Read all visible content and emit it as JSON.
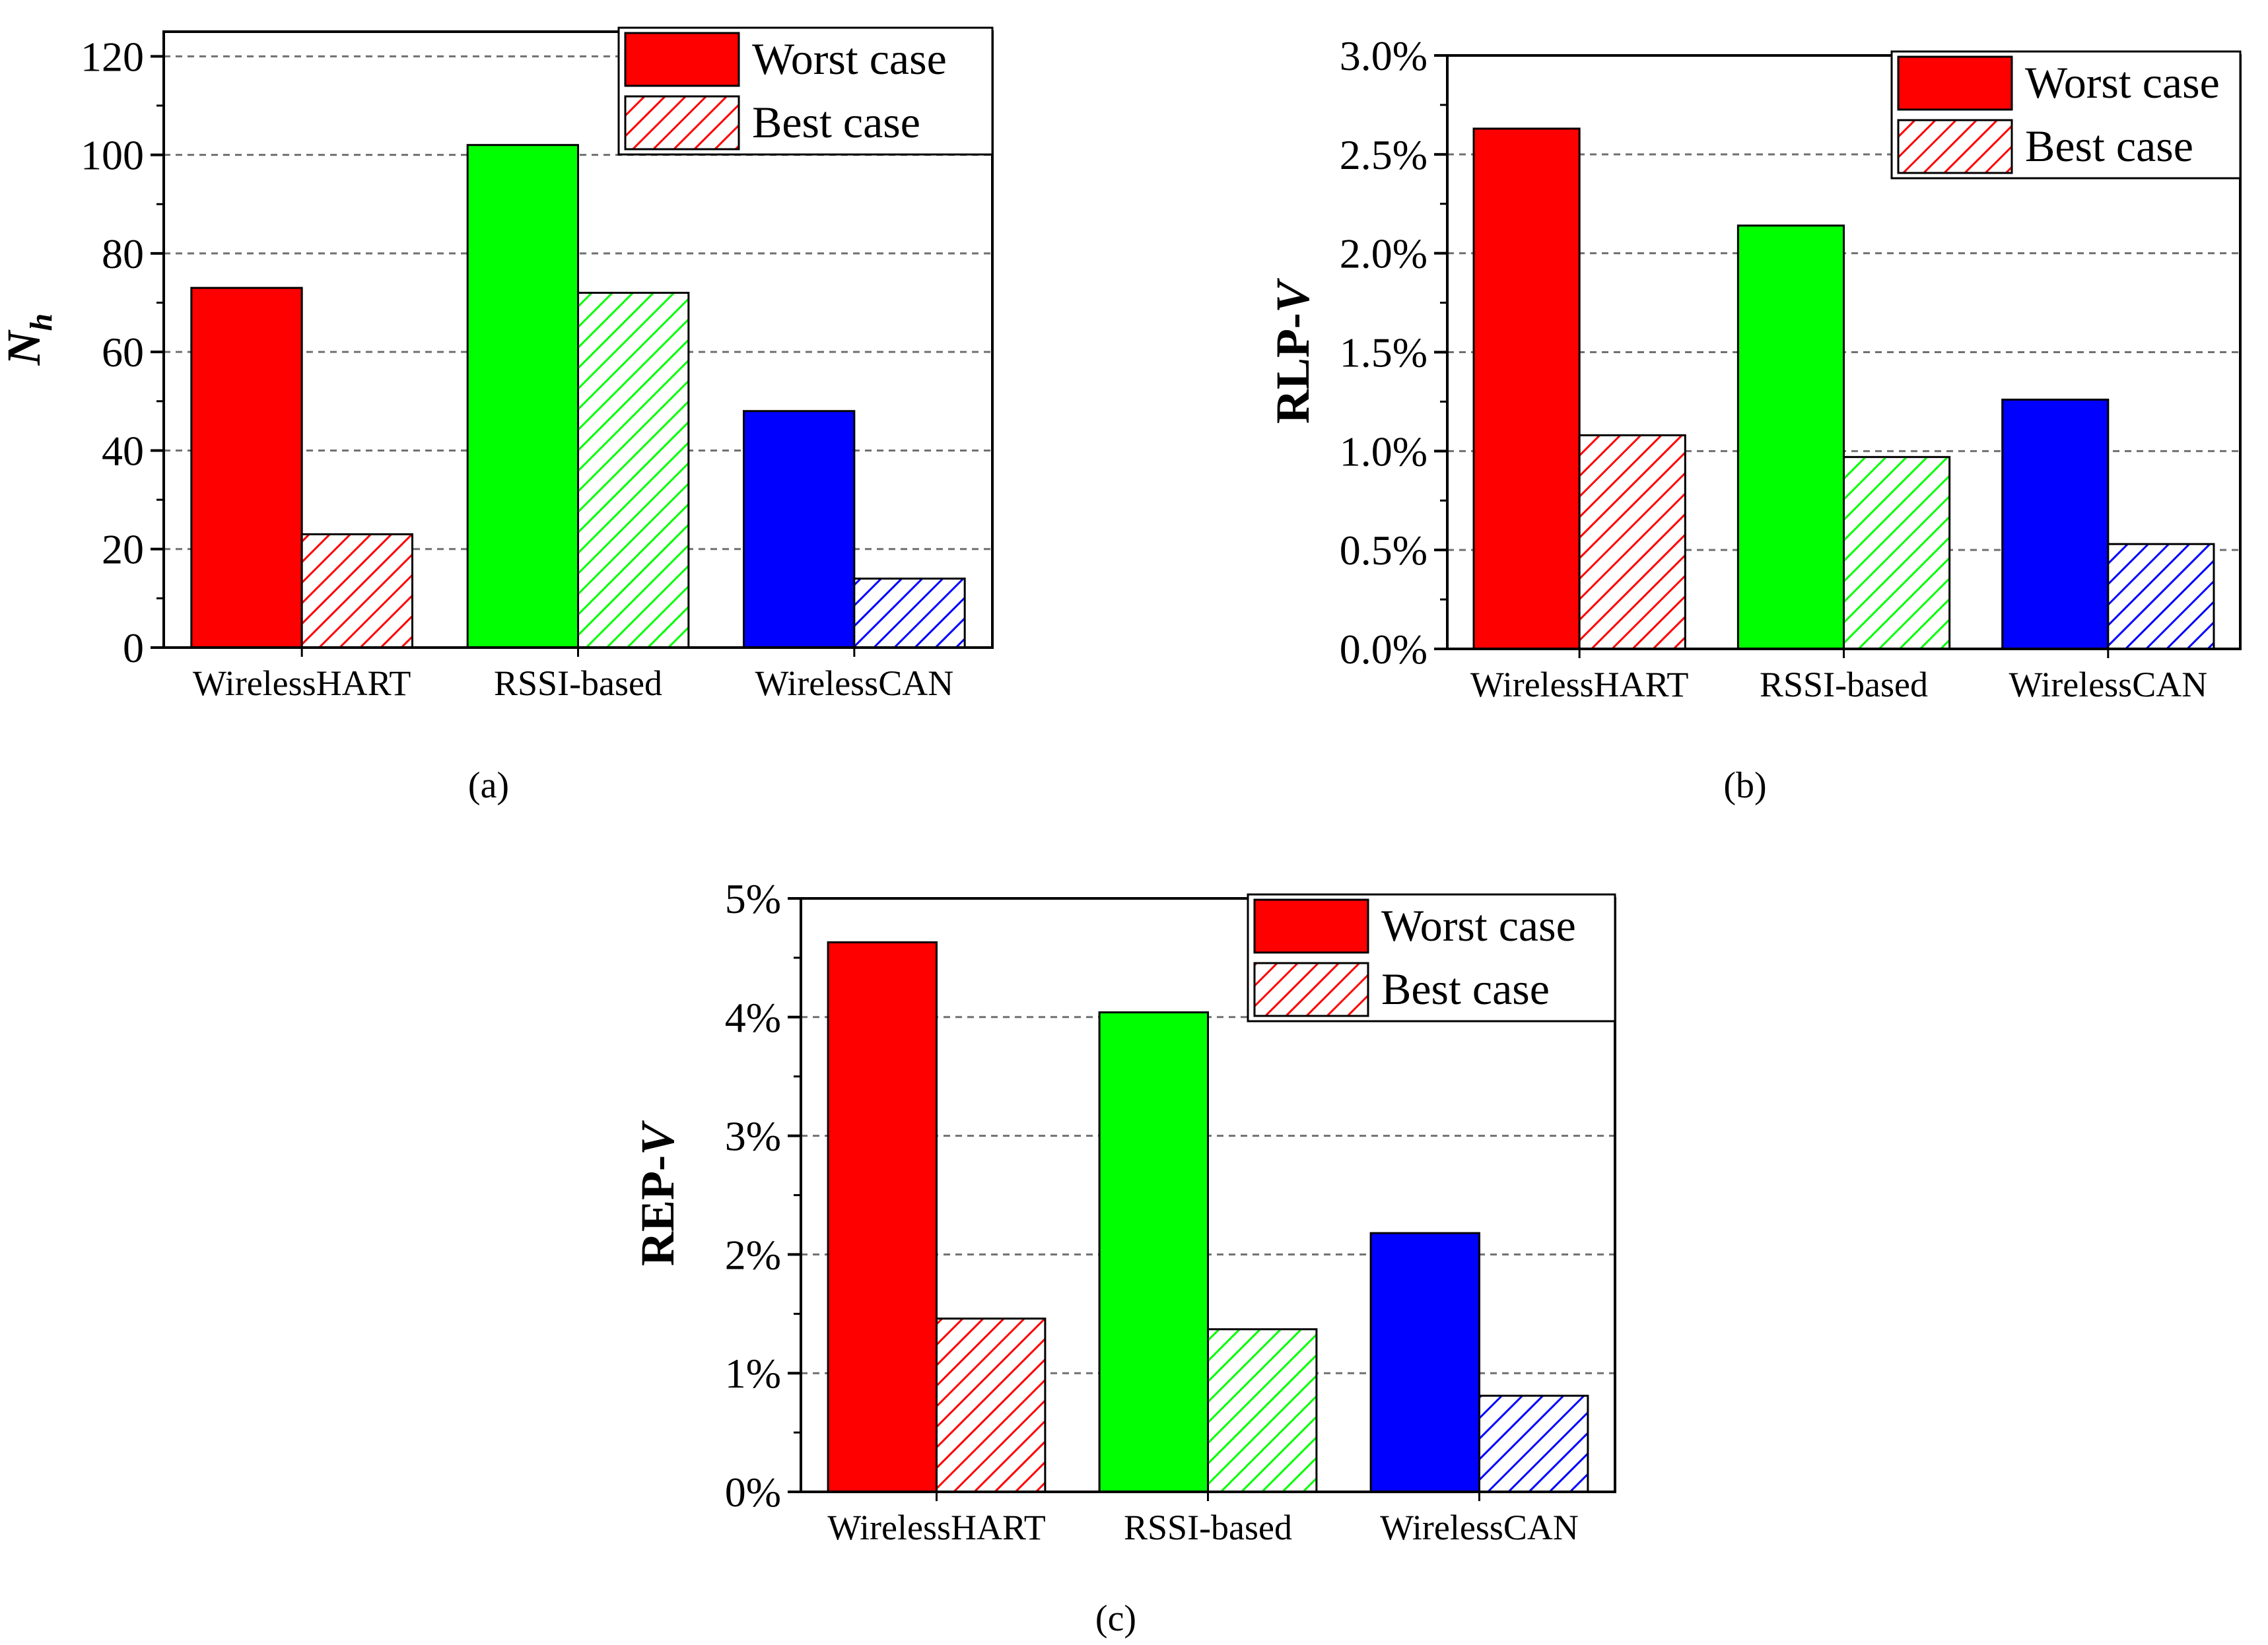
{
  "colors": {
    "WirelessHART": "#ff0000",
    "RSSI-based": "#00ff00",
    "WirelessCAN": "#0000ff",
    "grid": "#707070",
    "axis": "#000000"
  },
  "chart_data": [
    {
      "id": "a",
      "type": "bar",
      "caption": "(a)",
      "ylabel": "N",
      "ylabel_sub": "h",
      "categories": [
        "WirelessHART",
        "RSSI-based",
        "WirelessCAN"
      ],
      "series": [
        {
          "name": "Worst case",
          "values": [
            73,
            102,
            48
          ],
          "pattern": "solid"
        },
        {
          "name": "Best case",
          "values": [
            23,
            72,
            14
          ],
          "pattern": "hatched"
        }
      ],
      "ylim": [
        0,
        125
      ],
      "yticks": [
        0,
        20,
        40,
        60,
        80,
        100,
        120
      ],
      "ytick_labels": [
        "0",
        "20",
        "40",
        "60",
        "80",
        "100",
        "120"
      ],
      "grid": true,
      "legend": {
        "position": "top-right",
        "entries": [
          "Worst case",
          "Best case"
        ]
      }
    },
    {
      "id": "b",
      "type": "bar",
      "caption": "(b)",
      "ylabel": "RLP-",
      "ylabel_italic": "V",
      "categories": [
        "WirelessHART",
        "RSSI-based",
        "WirelessCAN"
      ],
      "series": [
        {
          "name": "Worst case",
          "values": [
            2.63,
            2.14,
            1.26
          ],
          "pattern": "solid"
        },
        {
          "name": "Best case",
          "values": [
            1.08,
            0.97,
            0.53
          ],
          "pattern": "hatched"
        }
      ],
      "ylim": [
        0,
        3.0
      ],
      "yticks": [
        0,
        0.5,
        1.0,
        1.5,
        2.0,
        2.5,
        3.0
      ],
      "ytick_labels": [
        "0.0%",
        "0.5%",
        "1.0%",
        "1.5%",
        "2.0%",
        "2.5%",
        "3.0%"
      ],
      "grid": true,
      "legend": {
        "position": "top-right",
        "entries": [
          "Worst case",
          "Best case"
        ]
      }
    },
    {
      "id": "c",
      "type": "bar",
      "caption": "(c)",
      "ylabel": "REP-",
      "ylabel_italic": "V",
      "categories": [
        "WirelessHART",
        "RSSI-based",
        "WirelessCAN"
      ],
      "series": [
        {
          "name": "Worst case",
          "values": [
            4.63,
            4.04,
            2.18
          ],
          "pattern": "solid"
        },
        {
          "name": "Best case",
          "values": [
            1.46,
            1.37,
            0.81
          ],
          "pattern": "hatched"
        }
      ],
      "ylim": [
        0,
        5
      ],
      "yticks": [
        0,
        1,
        2,
        3,
        4,
        5
      ],
      "ytick_labels": [
        "0%",
        "1%",
        "2%",
        "3%",
        "4%",
        "5%"
      ],
      "grid": true,
      "legend": {
        "position": "top-right",
        "entries": [
          "Worst case",
          "Best case"
        ]
      }
    }
  ]
}
